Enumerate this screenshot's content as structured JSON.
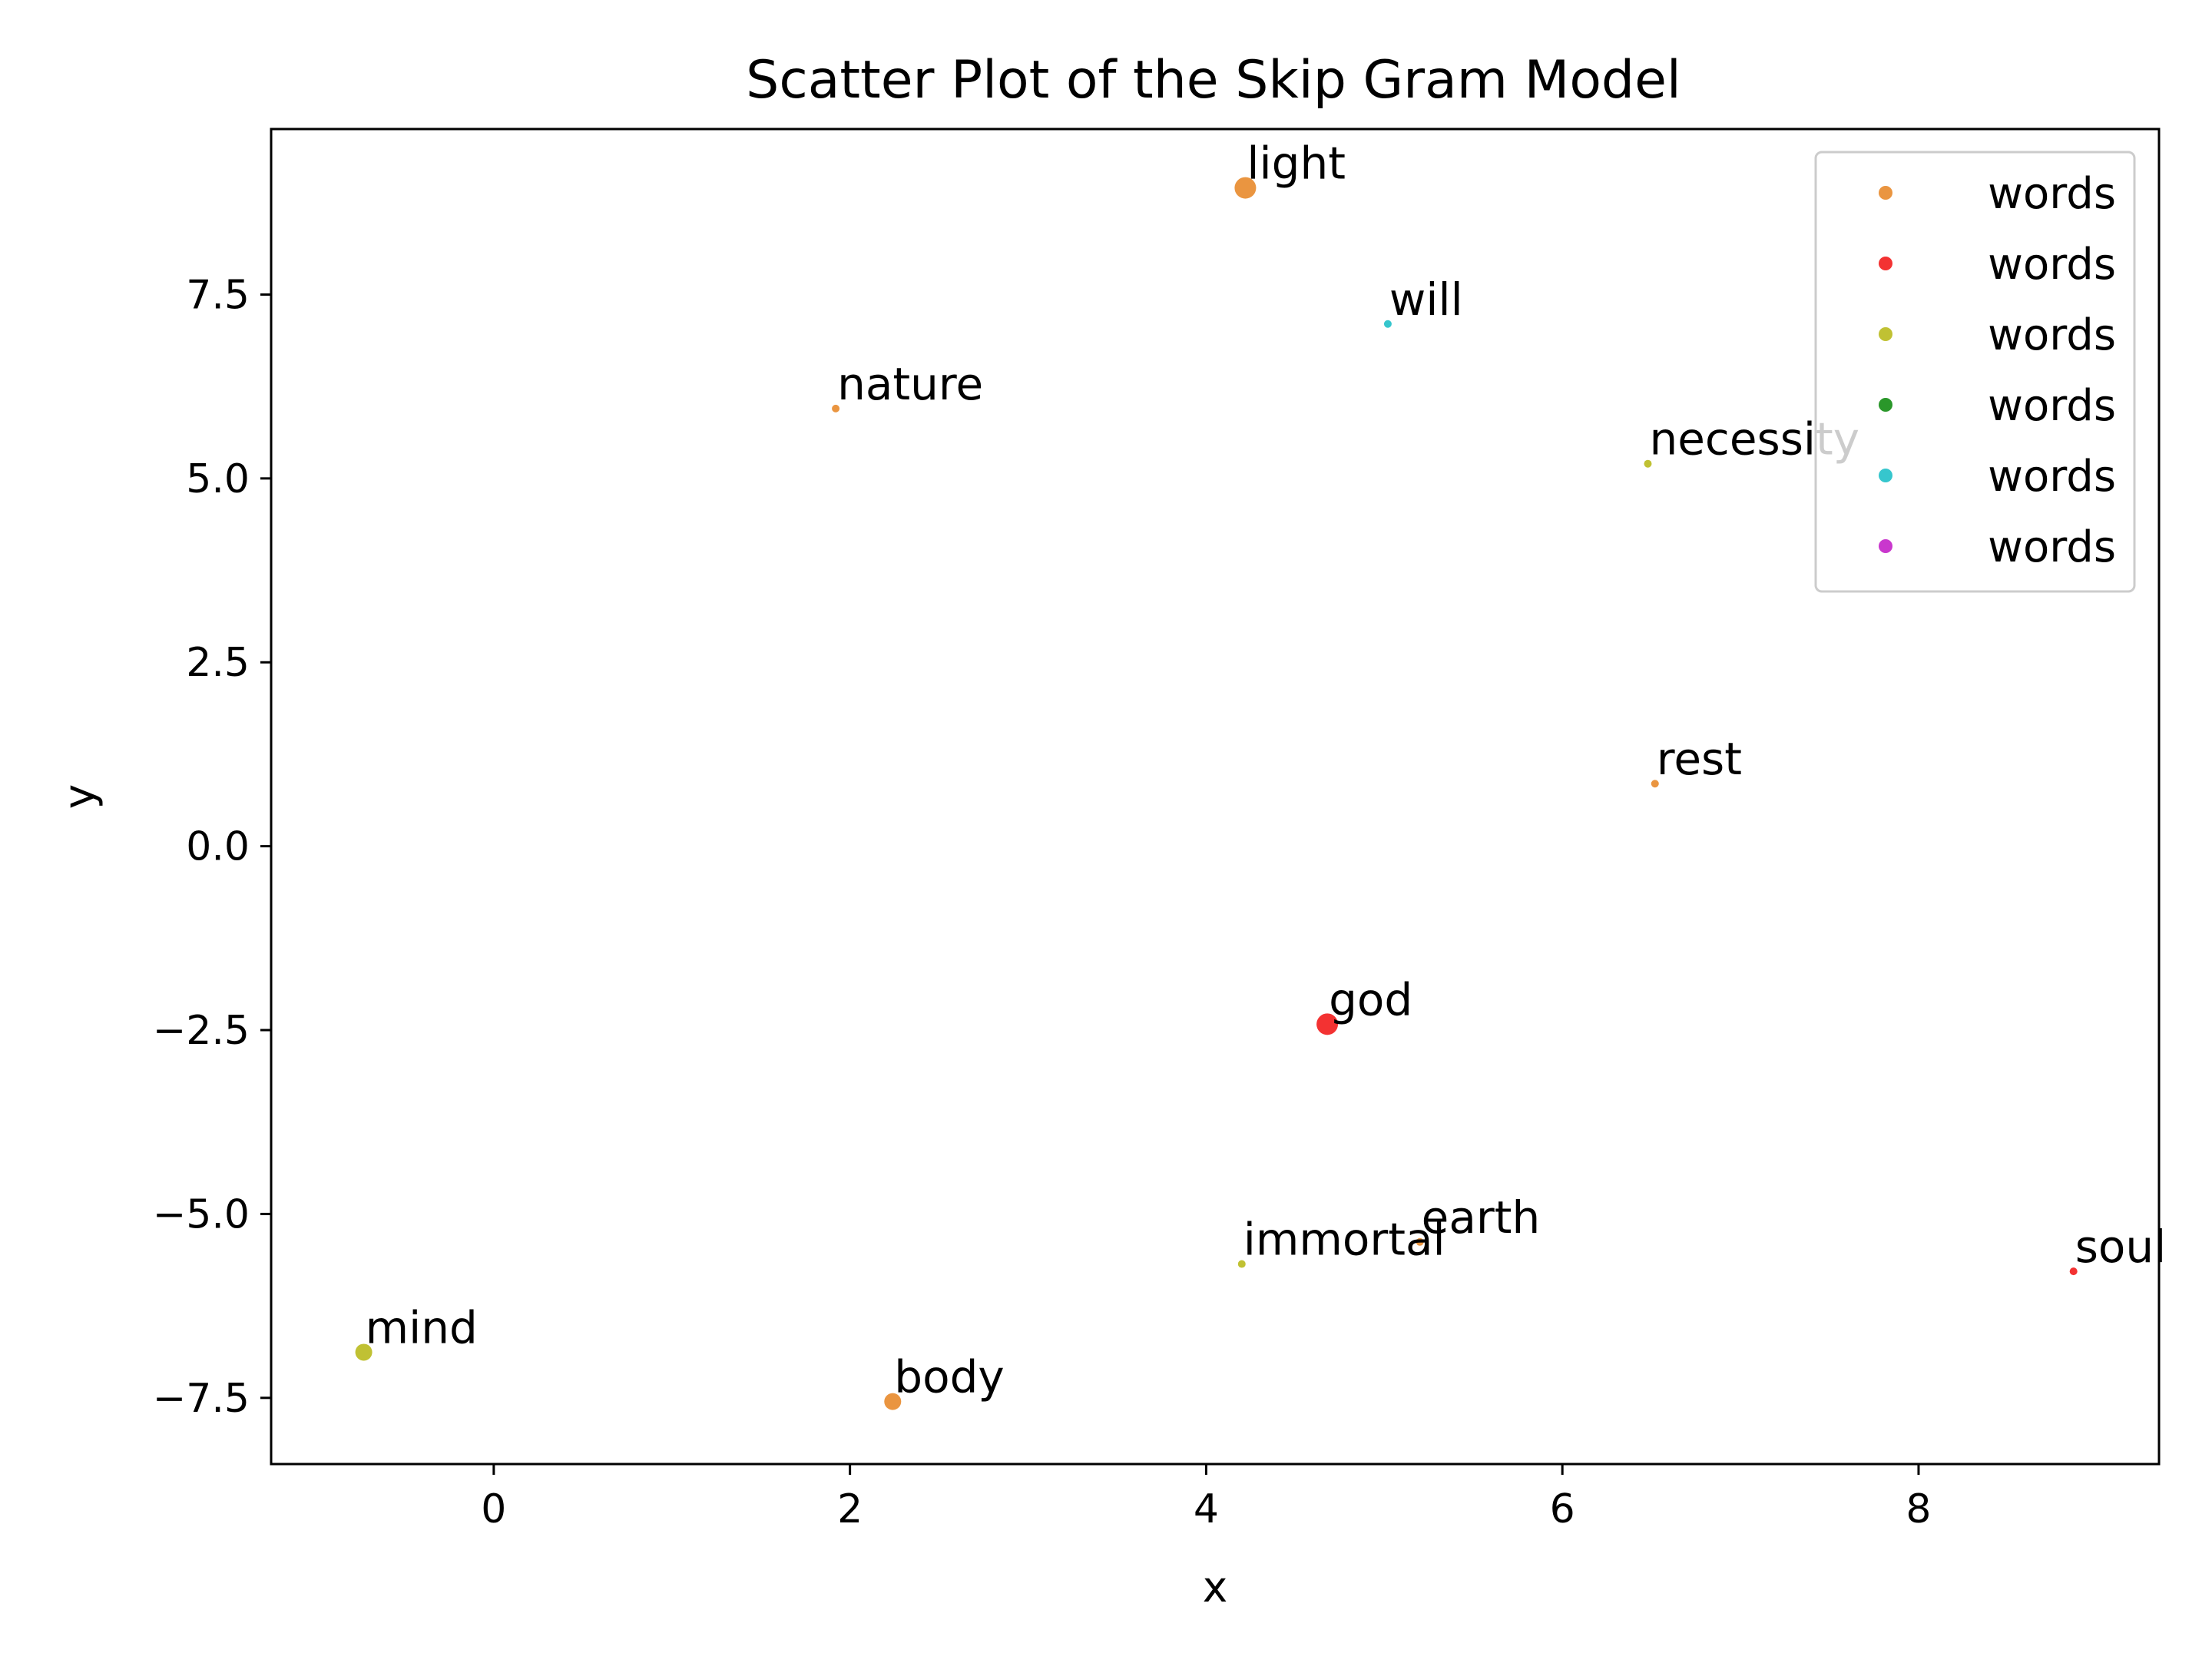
{
  "chart_data": {
    "type": "scatter",
    "title": "Scatter Plot of the Skip Gram Model",
    "xlabel": "x",
    "ylabel": "y",
    "xlim": [
      -1.25,
      9.35
    ],
    "ylim": [
      -8.4,
      9.75
    ],
    "xticks": [
      0,
      2,
      4,
      6,
      8
    ],
    "yticks": [
      -7.5,
      -5.0,
      -2.5,
      0.0,
      2.5,
      5.0,
      7.5
    ],
    "grid": false,
    "legend": {
      "placement": "upper right",
      "entries": [
        {
          "label": "words",
          "color": "#e8892b"
        },
        {
          "label": "words",
          "color": "#f21c1c"
        },
        {
          "label": "words",
          "color": "#b9ba1d"
        },
        {
          "label": "words",
          "color": "#138c13"
        },
        {
          "label": "words",
          "color": "#20c0c8"
        },
        {
          "label": "words",
          "color": "#c321c8"
        }
      ]
    },
    "points": [
      {
        "label": "light",
        "x": 4.22,
        "y": 8.95,
        "color": "#e8892b",
        "size": "large"
      },
      {
        "label": "will",
        "x": 5.02,
        "y": 7.1,
        "color": "#20c0c8",
        "size": "tiny"
      },
      {
        "label": "nature",
        "x": 1.92,
        "y": 5.95,
        "color": "#e8892b",
        "size": "tiny"
      },
      {
        "label": "necessity",
        "x": 6.48,
        "y": 5.2,
        "color": "#b9ba1d",
        "size": "tiny"
      },
      {
        "label": "rest",
        "x": 6.52,
        "y": 0.85,
        "color": "#e8892b",
        "size": "tiny"
      },
      {
        "label": "god",
        "x": 4.68,
        "y": -2.42,
        "color": "#f21c1c",
        "size": "large"
      },
      {
        "label": "earth",
        "x": 5.2,
        "y": -5.38,
        "color": "#e8892b",
        "size": "tiny"
      },
      {
        "label": "immortal",
        "x": 4.2,
        "y": -5.68,
        "color": "#b9ba1d",
        "size": "tiny"
      },
      {
        "label": "soul",
        "x": 8.87,
        "y": -5.78,
        "color": "#f21c1c",
        "size": "tiny"
      },
      {
        "label": "mind",
        "x": -0.73,
        "y": -6.88,
        "color": "#b9ba1d",
        "size": "medium"
      },
      {
        "label": "body",
        "x": 2.24,
        "y": -7.55,
        "color": "#e8892b",
        "size": "medium"
      }
    ]
  }
}
